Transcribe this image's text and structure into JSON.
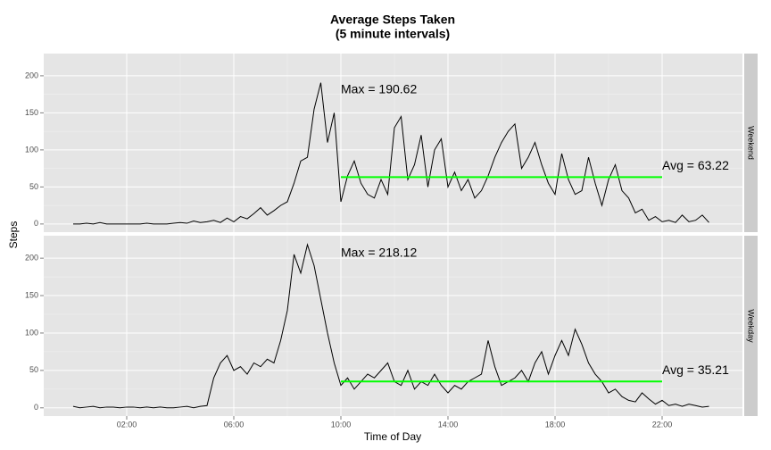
{
  "chart_data": {
    "type": "line",
    "title": "Average Steps Taken",
    "subtitle": "(5 minute intervals)",
    "x_label": "Time of Day",
    "y_label": "Steps",
    "xlim": [
      -1.1,
      25.0
    ],
    "xticks": [
      {
        "value": 2,
        "label": "02:00"
      },
      {
        "value": 6,
        "label": "06:00"
      },
      {
        "value": 10,
        "label": "10:00"
      },
      {
        "value": 14,
        "label": "14:00"
      },
      {
        "value": 18,
        "label": "18:00"
      },
      {
        "value": 22,
        "label": "22:00"
      }
    ],
    "ylim": [
      -11,
      230
    ],
    "yticks": [
      0,
      50,
      100,
      150,
      200
    ],
    "grid": true,
    "color": "#000000",
    "avg_color": "#00ff00",
    "avg_span": [
      10,
      22
    ],
    "x": [
      0,
      0.25,
      0.5,
      0.75,
      1,
      1.25,
      1.5,
      1.75,
      2,
      2.25,
      2.5,
      2.75,
      3,
      3.25,
      3.5,
      3.75,
      4,
      4.25,
      4.5,
      4.75,
      5,
      5.25,
      5.5,
      5.75,
      6,
      6.25,
      6.5,
      6.75,
      7,
      7.25,
      7.5,
      7.75,
      8,
      8.25,
      8.5,
      8.75,
      9,
      9.25,
      9.5,
      9.75,
      10,
      10.25,
      10.5,
      10.75,
      11,
      11.25,
      11.5,
      11.75,
      12,
      12.25,
      12.5,
      12.75,
      13,
      13.25,
      13.5,
      13.75,
      14,
      14.25,
      14.5,
      14.75,
      15,
      15.25,
      15.5,
      15.75,
      16,
      16.25,
      16.5,
      16.75,
      17,
      17.25,
      17.5,
      17.75,
      18,
      18.25,
      18.5,
      18.75,
      19,
      19.25,
      19.5,
      19.75,
      20,
      20.25,
      20.5,
      20.75,
      21,
      21.25,
      21.5,
      21.75,
      22,
      22.25,
      22.5,
      22.75,
      23,
      23.25,
      23.5,
      23.75
    ],
    "panels": [
      {
        "name": "Weekend",
        "values": [
          0,
          0,
          1,
          0,
          2,
          0,
          0,
          0,
          0,
          0,
          0,
          1,
          0,
          0,
          0,
          1,
          2,
          1,
          4,
          2,
          3,
          5,
          2,
          8,
          3,
          10,
          7,
          14,
          22,
          12,
          18,
          25,
          30,
          55,
          85,
          90,
          155,
          190.62,
          110,
          150,
          30,
          65,
          85,
          55,
          40,
          35,
          60,
          40,
          130,
          145,
          60,
          80,
          120,
          50,
          100,
          115,
          50,
          70,
          45,
          60,
          35,
          45,
          65,
          90,
          110,
          125,
          135,
          75,
          90,
          110,
          80,
          55,
          40,
          95,
          60,
          40,
          45,
          90,
          55,
          25,
          60,
          80,
          45,
          35,
          15,
          20,
          5,
          10,
          3,
          5,
          2,
          12,
          3,
          5,
          12,
          2
        ],
        "max": {
          "value": 190.62,
          "label": "Max = 190.62"
        },
        "avg": {
          "value": 63.22,
          "label": "Avg = 63.22"
        }
      },
      {
        "name": "Weekday",
        "values": [
          2,
          0,
          1,
          2,
          0,
          1,
          1,
          0,
          1,
          1,
          0,
          1,
          0,
          1,
          0,
          0,
          1,
          2,
          0,
          2,
          3,
          40,
          60,
          70,
          50,
          55,
          45,
          60,
          55,
          65,
          60,
          90,
          130,
          205,
          180,
          218.12,
          190,
          145,
          100,
          60,
          30,
          40,
          25,
          35,
          45,
          40,
          50,
          60,
          35,
          30,
          50,
          25,
          35,
          30,
          45,
          30,
          20,
          30,
          25,
          35,
          40,
          45,
          90,
          55,
          30,
          35,
          40,
          50,
          35,
          60,
          75,
          45,
          70,
          90,
          70,
          105,
          85,
          60,
          45,
          35,
          20,
          25,
          15,
          10,
          8,
          20,
          12,
          5,
          10,
          3,
          5,
          2,
          5,
          3,
          1,
          2
        ],
        "max": {
          "value": 218.12,
          "label": "Max = 218.12"
        },
        "avg": {
          "value": 35.21,
          "label": "Avg = 35.21"
        }
      }
    ]
  }
}
